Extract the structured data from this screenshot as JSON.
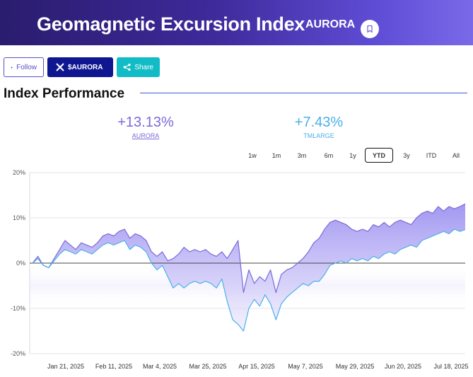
{
  "header": {
    "title": "Geomagnetic Excursion Index",
    "ticker": "AURORA"
  },
  "buttons": {
    "follow": "Follow",
    "x": "$AURORA",
    "share": "Share"
  },
  "section": {
    "title": "Index Performance"
  },
  "performance": [
    {
      "value": "+13.13%",
      "label": "AURORA",
      "color": "#7a6ad8"
    },
    {
      "value": "+7.43%",
      "label": "TMLARGE",
      "color": "#4ab0ea"
    }
  ],
  "ranges": [
    "1w",
    "1m",
    "3m",
    "6m",
    "1y",
    "YTD",
    "3y",
    "ITD",
    "All"
  ],
  "active_range": "YTD",
  "chart_data": {
    "type": "area",
    "x_labels": [
      "Jan 21, 2025",
      "Feb 11, 2025",
      "Mar 4, 2025",
      "Mar 25, 2025",
      "Apr 15, 2025",
      "May 7, 2025",
      "May 29, 2025",
      "Jun 20, 2025",
      "Jul 18, 2025"
    ],
    "y_ticks": [
      "20%",
      "10%",
      "0%",
      "-10%",
      "-20%"
    ],
    "ylim": [
      -20,
      20
    ],
    "grid": true,
    "series": [
      {
        "name": "AURORA",
        "color": "#7a6ad8",
        "values": [
          0,
          1.5,
          -0.5,
          -1,
          1,
          3,
          5,
          4,
          3,
          4.5,
          4,
          3.5,
          4.5,
          6,
          6.5,
          6,
          7,
          7.5,
          5.5,
          6.5,
          6,
          5,
          2.5,
          1.5,
          2.5,
          0.5,
          1,
          2,
          3.5,
          2.5,
          3,
          2.5,
          3,
          2,
          1.5,
          2.5,
          1,
          3,
          5,
          -6.5,
          -1.5,
          -4.5,
          -3,
          -4,
          -1.5,
          -6.5,
          -2.5,
          -1.5,
          -1,
          0,
          1,
          2.5,
          4.5,
          5.5,
          7.5,
          9,
          9.5,
          9,
          8.5,
          7.5,
          7,
          7.5,
          7,
          8.5,
          8,
          9,
          8,
          9,
          9.5,
          9,
          8.5,
          10,
          11,
          11.5,
          11,
          12.5,
          11.5,
          12.5,
          12,
          12.5,
          13.1
        ]
      },
      {
        "name": "TMLARGE",
        "color": "#4ab0ea",
        "values": [
          0,
          1,
          -0.5,
          -1,
          0.5,
          2,
          3,
          2.5,
          2,
          3,
          2.5,
          2,
          3,
          4,
          4.5,
          4,
          4.5,
          5,
          3,
          4,
          3.5,
          2.5,
          0,
          -1.5,
          -0.5,
          -3,
          -5.5,
          -4.5,
          -5.5,
          -4.5,
          -4,
          -4.5,
          -4,
          -4.5,
          -5.5,
          -3.5,
          -8.5,
          -12.5,
          -13.5,
          -15,
          -10,
          -8,
          -9.5,
          -7,
          -9,
          -12.5,
          -9,
          -7.5,
          -6.5,
          -5.5,
          -4.5,
          -5,
          -4,
          -4,
          -2.5,
          -0.5,
          0,
          0.5,
          0,
          1,
          0.5,
          1,
          0.5,
          1.5,
          1,
          2,
          2.5,
          2,
          3,
          3.5,
          4,
          3.5,
          5,
          5.5,
          6,
          6.5,
          7,
          6.5,
          7.5,
          7,
          7.4
        ]
      }
    ]
  }
}
